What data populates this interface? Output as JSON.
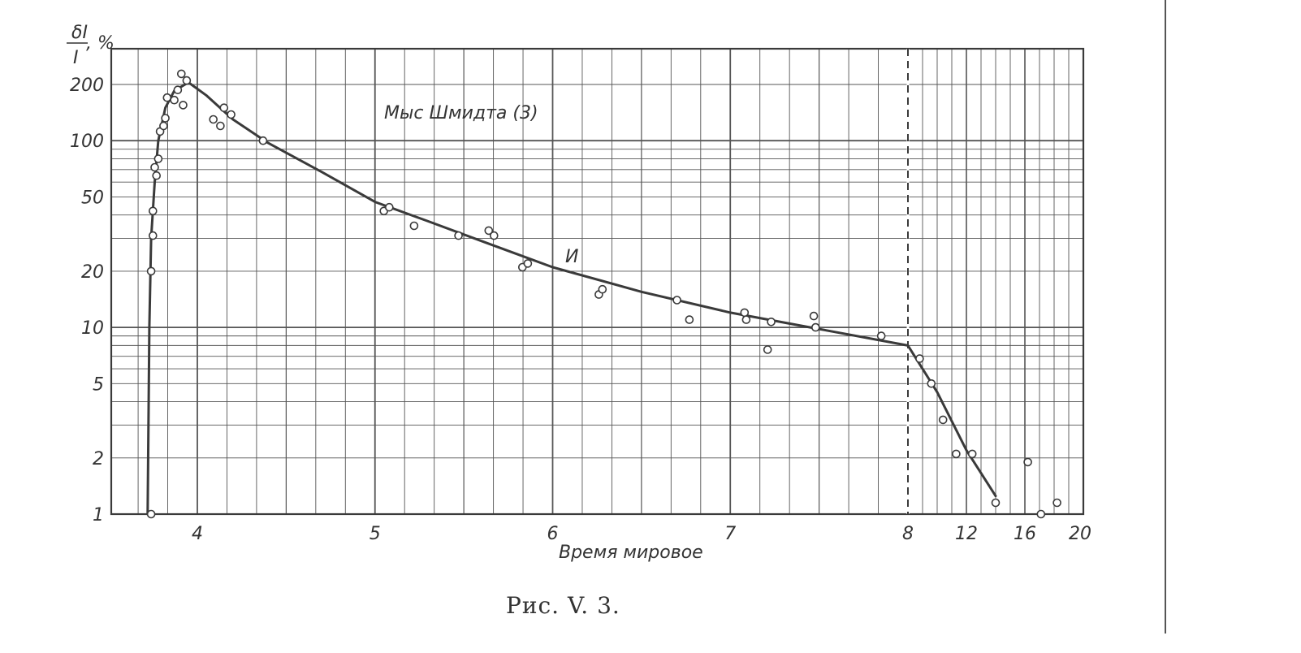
{
  "chart_data": {
    "type": "scatter",
    "title": "",
    "ylabel_num": "δI",
    "ylabel_den": "I",
    "ylabel_unit": ", %",
    "xlabel": "Время мировое",
    "caption": "Рис. V. 3.",
    "annotation": "Мыс Шмидта (3)",
    "curve_label": "И",
    "y_scale": "log",
    "ylim": [
      1,
      270
    ],
    "y_ticks": [
      1,
      2,
      5,
      10,
      20,
      50,
      100,
      200
    ],
    "y_tick_labels": [
      "1",
      "2",
      "5",
      "10",
      "20",
      "50",
      "100",
      "200"
    ],
    "x_segments": [
      {
        "from": 3.5,
        "to": 8.0,
        "scale": "hours",
        "ticks": [
          4,
          5,
          6,
          7,
          8
        ]
      },
      {
        "from": 8,
        "to": 20,
        "scale": "hours",
        "ticks": [
          12,
          16,
          20
        ]
      }
    ],
    "x_tick_labels": [
      "4",
      "5",
      "6",
      "7",
      "8",
      "12",
      "16",
      "20"
    ],
    "dashed_vertical_at": 8,
    "grid": true,
    "series": [
      {
        "name": "",
        "kind": "curve",
        "points": [
          [
            3.72,
            1
          ],
          [
            3.73,
            10
          ],
          [
            3.74,
            30
          ],
          [
            3.76,
            60
          ],
          [
            3.78,
            100
          ],
          [
            3.82,
            150
          ],
          [
            3.87,
            185
          ],
          [
            3.95,
            205
          ],
          [
            4.05,
            175
          ],
          [
            4.2,
            130
          ],
          [
            4.4,
            97
          ],
          [
            4.7,
            68
          ],
          [
            5.0,
            47
          ],
          [
            5.3,
            37
          ],
          [
            5.6,
            29
          ],
          [
            6.0,
            21
          ],
          [
            6.5,
            15.5
          ],
          [
            7.0,
            12
          ],
          [
            7.5,
            9.8
          ],
          [
            8.0,
            8
          ],
          [
            10.0,
            4.5
          ],
          [
            12.0,
            2.2
          ],
          [
            14.0,
            1.25
          ]
        ]
      },
      {
        "name": "",
        "kind": "points",
        "points": [
          [
            3.74,
            1
          ],
          [
            3.74,
            20
          ],
          [
            3.75,
            31
          ],
          [
            3.75,
            42
          ],
          [
            3.76,
            72
          ],
          [
            3.77,
            65
          ],
          [
            3.78,
            80
          ],
          [
            3.79,
            112
          ],
          [
            3.81,
            120
          ],
          [
            3.82,
            132
          ],
          [
            3.83,
            170
          ],
          [
            3.87,
            165
          ],
          [
            3.89,
            187
          ],
          [
            3.91,
            228
          ],
          [
            3.92,
            155
          ],
          [
            3.94,
            210
          ],
          [
            4.09,
            130
          ],
          [
            4.13,
            120
          ],
          [
            4.15,
            150
          ],
          [
            4.19,
            138
          ],
          [
            4.37,
            100
          ],
          [
            5.05,
            42
          ],
          [
            5.08,
            44
          ],
          [
            5.22,
            35
          ],
          [
            5.47,
            31
          ],
          [
            5.64,
            33
          ],
          [
            5.67,
            31
          ],
          [
            5.83,
            21
          ],
          [
            5.86,
            22
          ],
          [
            6.26,
            15
          ],
          [
            6.28,
            16
          ],
          [
            6.7,
            14
          ],
          [
            6.77,
            11
          ],
          [
            7.08,
            12
          ],
          [
            7.09,
            11
          ],
          [
            7.21,
            7.6
          ],
          [
            7.23,
            10.7
          ],
          [
            7.47,
            11.5
          ],
          [
            7.48,
            10
          ],
          [
            7.85,
            9
          ],
          [
            8.8,
            6.8
          ],
          [
            9.6,
            5
          ],
          [
            10.4,
            3.2
          ],
          [
            11.3,
            2.1
          ],
          [
            12.4,
            2.1
          ],
          [
            14.0,
            1.15
          ],
          [
            16.2,
            1.9
          ],
          [
            17.1,
            1
          ],
          [
            18.2,
            1.15
          ]
        ]
      }
    ],
    "colors": {
      "ink": "#3a3a3a",
      "grid": "#555555",
      "background": "#ffffff"
    }
  }
}
